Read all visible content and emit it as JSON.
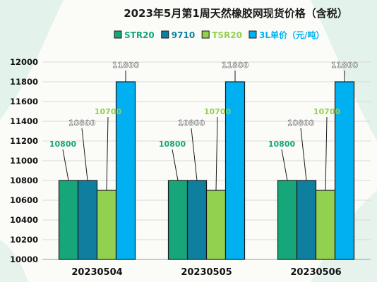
{
  "chart_data": {
    "type": "bar",
    "title": "2023年5月第1周天然橡胶网现货价格（含税）",
    "categories": [
      "20230504",
      "20230505",
      "20230506"
    ],
    "series": [
      {
        "name": "STR20",
        "values": [
          10800,
          10800,
          10800
        ],
        "color": "#17a67a",
        "label_color": "#17a67a"
      },
      {
        "name": "9710",
        "values": [
          10800,
          10800,
          10800
        ],
        "color": "#0f7fa0",
        "label_color": "#ffffff"
      },
      {
        "name": "TSR20",
        "values": [
          10700,
          10700,
          10700
        ],
        "color": "#92d050",
        "label_color": "#92d050"
      },
      {
        "name": "3L单价（元/吨）",
        "values": [
          11800,
          11800,
          11800
        ],
        "color": "#00b0f0",
        "label_color": "#ffffff"
      }
    ],
    "ylim": [
      10000,
      12000
    ],
    "yticks": [
      10000,
      10200,
      10400,
      10600,
      10800,
      11000,
      11200,
      11400,
      11600,
      11800,
      12000
    ],
    "xlabel": "",
    "ylabel": "",
    "grid": true,
    "legend_position": "top"
  }
}
